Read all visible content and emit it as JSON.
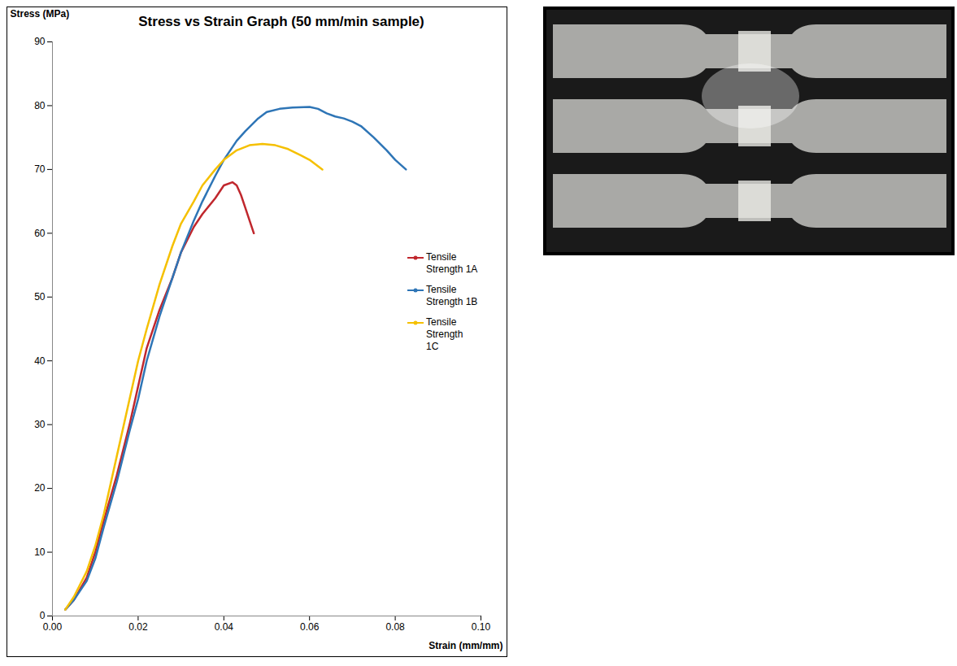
{
  "chart_data": {
    "type": "line",
    "title": "Stress vs Strain Graph (50 mm/min sample)",
    "x_label": "Strain (mm/mm)",
    "y_label": "Stress (MPa)",
    "xlim": [
      0,
      0.1
    ],
    "xticks": [
      {
        "value": 0,
        "label": "0.00"
      },
      {
        "value": 0.02,
        "label": "0.02"
      },
      {
        "value": 0.04,
        "label": "0.04"
      },
      {
        "value": 0.06,
        "label": "0.06"
      },
      {
        "value": 0.08,
        "label": "0.08"
      },
      {
        "value": 0.1,
        "label": "0.10"
      }
    ],
    "ylim": [
      0,
      90
    ],
    "yticks": [
      0,
      10,
      20,
      30,
      40,
      50,
      60,
      70,
      80,
      90
    ],
    "grid": false,
    "legend": "right",
    "series": [
      {
        "name": "Tensile Strength 1A",
        "color": "#c0272d",
        "x": [
          0.003,
          0.005,
          0.008,
          0.01,
          0.012,
          0.015,
          0.018,
          0.02,
          0.022,
          0.025,
          0.028,
          0.03,
          0.033,
          0.035,
          0.038,
          0.04,
          0.042,
          0.043,
          0.044,
          0.045,
          0.046,
          0.047
        ],
        "values": [
          1,
          2.5,
          6,
          10,
          15,
          22,
          30,
          36,
          42,
          48,
          53,
          57,
          61,
          63,
          65.5,
          67.5,
          68,
          67.5,
          66,
          64,
          62,
          60
        ]
      },
      {
        "name": "Tensile Strength 1B",
        "color": "#2e75b6",
        "x": [
          0.003,
          0.005,
          0.008,
          0.01,
          0.012,
          0.015,
          0.018,
          0.02,
          0.022,
          0.025,
          0.028,
          0.03,
          0.033,
          0.035,
          0.038,
          0.04,
          0.043,
          0.045,
          0.048,
          0.05,
          0.053,
          0.056,
          0.06,
          0.062,
          0.064,
          0.066,
          0.068,
          0.07,
          0.072,
          0.075,
          0.078,
          0.08,
          0.0825
        ],
        "values": [
          1,
          2.5,
          5.5,
          9,
          14,
          21,
          29,
          34,
          40,
          47,
          53,
          57,
          62,
          65,
          69,
          71.5,
          74.5,
          76,
          78,
          79,
          79.5,
          79.7,
          79.8,
          79.5,
          78.8,
          78.3,
          78,
          77.5,
          76.8,
          75,
          73,
          71.5,
          70
        ]
      },
      {
        "name": "Tensile Strength 1C",
        "color": "#f5c000",
        "x": [
          0.003,
          0.005,
          0.008,
          0.01,
          0.012,
          0.015,
          0.018,
          0.02,
          0.022,
          0.025,
          0.028,
          0.03,
          0.033,
          0.035,
          0.038,
          0.04,
          0.043,
          0.046,
          0.049,
          0.052,
          0.055,
          0.058,
          0.06,
          0.063
        ],
        "values": [
          1,
          3,
          7,
          11,
          16,
          25,
          34,
          40,
          45,
          52,
          58,
          61.5,
          65,
          67.5,
          70,
          71.5,
          73,
          73.8,
          74,
          73.8,
          73.2,
          72.2,
          71.5,
          70
        ]
      }
    ]
  }
}
